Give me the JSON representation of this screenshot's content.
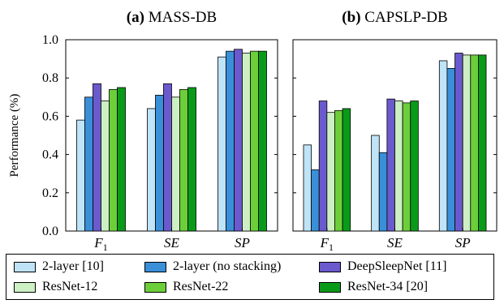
{
  "chart_data": [
    {
      "type": "bar",
      "title_prefix": "(a)",
      "title": "MASS-DB",
      "ylabel": "Performance (%)",
      "ylim": [
        0,
        1
      ],
      "yticks": [
        "0.0",
        "0.2",
        "0.4",
        "0.6",
        "0.8",
        "1.0"
      ],
      "categories": [
        "F1",
        "SE",
        "SP"
      ],
      "series": [
        {
          "name": "2-layer [10]",
          "values": [
            0.58,
            0.64,
            0.91
          ]
        },
        {
          "name": "2-layer (no stacking)",
          "values": [
            0.7,
            0.71,
            0.94
          ]
        },
        {
          "name": "DeepSleepNet [11]",
          "values": [
            0.77,
            0.77,
            0.95
          ]
        },
        {
          "name": "ResNet-12",
          "values": [
            0.68,
            0.7,
            0.93
          ]
        },
        {
          "name": "ResNet-22",
          "values": [
            0.74,
            0.74,
            0.94
          ]
        },
        {
          "name": "ResNet-34 [20]",
          "values": [
            0.75,
            0.75,
            0.94
          ]
        }
      ],
      "grid": false
    },
    {
      "type": "bar",
      "title_prefix": "(b)",
      "title": "CAPSLP-DB",
      "ylim": [
        0,
        1
      ],
      "categories": [
        "F1",
        "SE",
        "SP"
      ],
      "series": [
        {
          "name": "2-layer [10]",
          "values": [
            0.45,
            0.5,
            0.89
          ]
        },
        {
          "name": "2-layer (no stacking)",
          "values": [
            0.32,
            0.41,
            0.85
          ]
        },
        {
          "name": "DeepSleepNet [11]",
          "values": [
            0.68,
            0.69,
            0.93
          ]
        },
        {
          "name": "ResNet-12",
          "values": [
            0.62,
            0.68,
            0.92
          ]
        },
        {
          "name": "ResNet-22",
          "values": [
            0.63,
            0.67,
            0.92
          ]
        },
        {
          "name": "ResNet-34 [20]",
          "values": [
            0.64,
            0.68,
            0.92
          ]
        }
      ],
      "grid": false
    }
  ],
  "legend": [
    {
      "label": "2-layer [10]",
      "color": "#bfe3f7"
    },
    {
      "label": "2-layer (no stacking)",
      "color": "#3a8fd9"
    },
    {
      "label": "DeepSleepNet [11]",
      "color": "#6a5acd"
    },
    {
      "label": "ResNet-12",
      "color": "#cdefc4"
    },
    {
      "label": "ResNet-22",
      "color": "#6ccf3a"
    },
    {
      "label": "ResNet-34 [20]",
      "color": "#0a9a1a"
    }
  ]
}
